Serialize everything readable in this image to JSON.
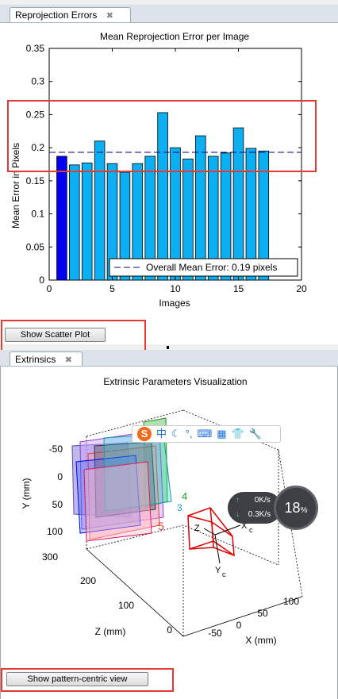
{
  "tabs": {
    "reprojection": "Reprojection Errors",
    "extrinsics": "Extrinsics",
    "close_glyph": "✖"
  },
  "buttons": {
    "scatter": "Show Scatter Plot",
    "pattern_view": "Show pattern-centric view"
  },
  "chart_data": [
    {
      "type": "bar",
      "title": "Mean Reprojection Error per Image",
      "xlabel": "Images",
      "ylabel": "Mean Error in Pixels",
      "x": [
        1,
        2,
        3,
        4,
        5,
        6,
        7,
        8,
        9,
        10,
        11,
        12,
        13,
        14,
        15,
        16,
        17
      ],
      "values": [
        0.187,
        0.174,
        0.177,
        0.21,
        0.176,
        0.163,
        0.176,
        0.187,
        0.253,
        0.2,
        0.183,
        0.218,
        0.187,
        0.192,
        0.23,
        0.199,
        0.195
      ],
      "highlighted_index": 0,
      "xlim": [
        0,
        20
      ],
      "ylim": [
        0,
        0.35
      ],
      "xticks": [
        "0",
        "5",
        "10",
        "15",
        "20"
      ],
      "yticks": [
        "0",
        "0.05",
        "0.1",
        "0.15",
        "0.2",
        "0.25",
        "0.3",
        "0.35"
      ],
      "mean_line": 0.193,
      "legend": "Overall Mean Error: 0.19 pixels",
      "legend_position": "bottom-right",
      "colors": {
        "bar": "#0cb0f2",
        "highlight": "#0000ee",
        "mean": "#00007f"
      }
    },
    {
      "type": "3d-scatter",
      "title": "Extrinsic Parameters Visualization",
      "xlabel": "X (mm)",
      "ylabel": "Y (mm)",
      "zlabel": "Z (mm)",
      "xticks": [
        "-50",
        "0",
        "50",
        "100"
      ],
      "yticks": [
        "-50",
        "0",
        "50",
        "100"
      ],
      "zticks": [
        "300",
        "200",
        "100",
        "0"
      ],
      "camera_labels": [
        "Z",
        "X",
        "Y"
      ],
      "camera_subscript": "c",
      "visible_board_numbers": [
        "4",
        "5",
        "3"
      ]
    }
  ],
  "ime_toolbar": {
    "logo": "S",
    "items": [
      "中",
      "☾",
      "°,",
      "⌨",
      "▦",
      "👕",
      "🔧"
    ]
  },
  "net_widget": {
    "upload": "0K/s",
    "download": "0.3K/s",
    "percent": "18",
    "percent_unit": "%"
  }
}
